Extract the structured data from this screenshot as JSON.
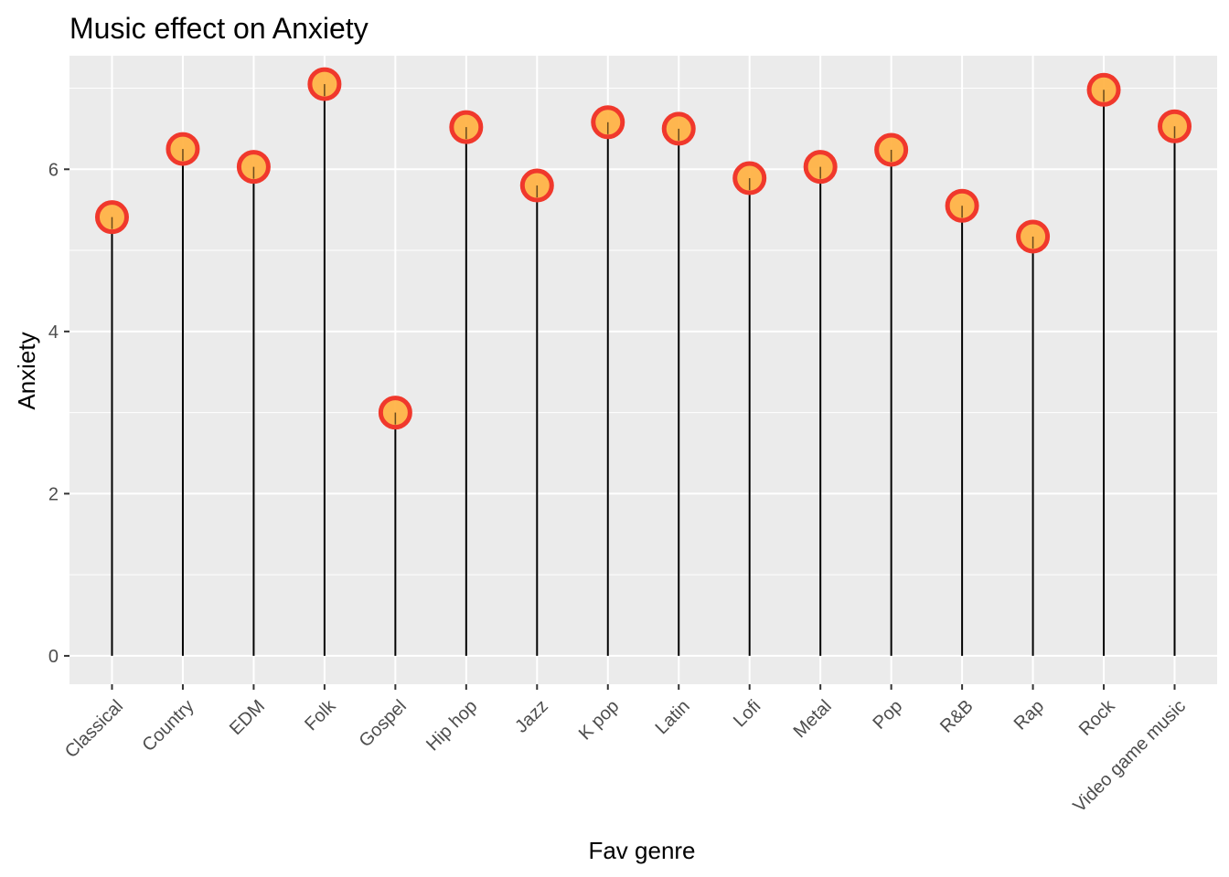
{
  "chart_data": {
    "type": "lollipop",
    "title": "Music effect on Anxiety",
    "xlabel": "Fav genre",
    "ylabel": "Anxiety",
    "categories": [
      "Classical",
      "Country",
      "EDM",
      "Folk",
      "Gospel",
      "Hip hop",
      "Jazz",
      "K pop",
      "Latin",
      "Lofi",
      "Metal",
      "Pop",
      "R&B",
      "Rap",
      "Rock",
      "Video game music"
    ],
    "values": [
      5.41,
      6.25,
      6.03,
      7.05,
      3.0,
      6.52,
      5.8,
      6.58,
      6.5,
      5.89,
      6.03,
      6.24,
      5.55,
      5.17,
      6.98,
      6.53
    ],
    "ylim": [
      -0.35,
      7.4
    ],
    "yticks": [
      0,
      2,
      4,
      6
    ],
    "ytick_labels": [
      "0",
      "2",
      "4",
      "6"
    ],
    "grid": true,
    "colors": {
      "panel_background": "#EBEBEB",
      "grid_major": "#FFFFFF",
      "stem": "#000000",
      "point_fill": "#FFB347",
      "point_outline": "#F0382C"
    }
  }
}
